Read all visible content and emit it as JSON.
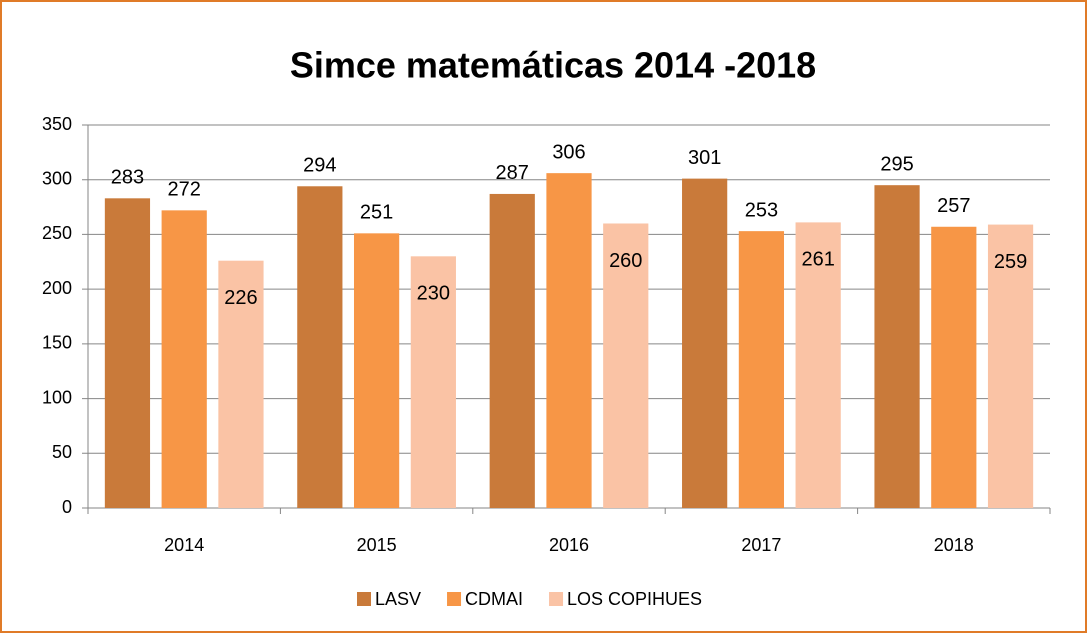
{
  "chart_data": {
    "type": "bar",
    "title": "Simce matemáticas 2014 -2018",
    "categories": [
      "2014",
      "2015",
      "2016",
      "2017",
      "2018"
    ],
    "series": [
      {
        "name": "LASV",
        "color": "#c97a3a",
        "values": [
          283,
          294,
          287,
          301,
          295
        ]
      },
      {
        "name": "CDMAI",
        "color": "#f79646",
        "values": [
          272,
          251,
          306,
          253,
          257
        ]
      },
      {
        "name": "LOS COPIHUES",
        "color": "#fac3a5",
        "values": [
          226,
          230,
          260,
          261,
          259
        ]
      }
    ],
    "ylim": [
      0,
      350
    ],
    "yticks": [
      0,
      50,
      100,
      150,
      200,
      250,
      300,
      350
    ],
    "grid": true,
    "legend": "bottom"
  }
}
